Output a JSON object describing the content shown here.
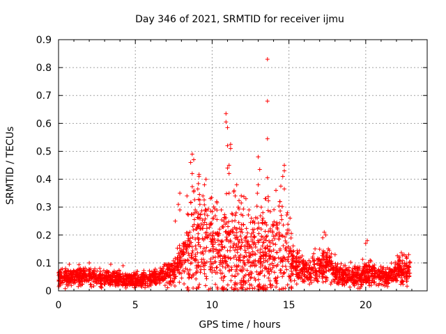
{
  "chart_data": {
    "type": "scatter",
    "title": "Day 346 of 2021, SRMTID for receiver ijmu",
    "xlabel": "GPS time / hours",
    "ylabel": "SRMTID / TECUs",
    "xlim": [
      0,
      24
    ],
    "ylim": [
      0,
      0.9
    ],
    "xticks": [
      0,
      5,
      10,
      15,
      20
    ],
    "yticks": [
      0,
      0.1,
      0.2,
      0.3,
      0.4,
      0.5,
      0.6,
      0.7,
      0.8,
      0.9
    ],
    "grid": true,
    "marker": "plus",
    "series": [
      {
        "name": "SRMTID",
        "color": "#ff0000",
        "profile": {
          "x": [
            0,
            1,
            2,
            3,
            4,
            5,
            6,
            6.5,
            7,
            7.5,
            8,
            8.3,
            8.6,
            8.8,
            9,
            9.5,
            10,
            10.5,
            11,
            11.5,
            12,
            12.5,
            13,
            13.5,
            14,
            14.5,
            15,
            15.5,
            16,
            16.5,
            17,
            17.5,
            18,
            18.5,
            19,
            19.5,
            20,
            20.5,
            21,
            21.5,
            22,
            22.5,
            22.9
          ],
          "y": [
            0.045,
            0.05,
            0.05,
            0.045,
            0.04,
            0.04,
            0.045,
            0.05,
            0.065,
            0.075,
            0.1,
            0.14,
            0.17,
            0.19,
            0.2,
            0.17,
            0.16,
            0.15,
            0.15,
            0.15,
            0.14,
            0.13,
            0.14,
            0.14,
            0.15,
            0.17,
            0.12,
            0.09,
            0.07,
            0.075,
            0.08,
            0.1,
            0.065,
            0.055,
            0.055,
            0.06,
            0.065,
            0.06,
            0.055,
            0.05,
            0.07,
            0.08,
            0.08
          ]
        },
        "outliers": [
          {
            "x": 13.6,
            "y": 0.83
          },
          {
            "x": 13.6,
            "y": 0.68
          },
          {
            "x": 10.9,
            "y": 0.635
          },
          {
            "x": 10.9,
            "y": 0.605
          },
          {
            "x": 11.0,
            "y": 0.585
          },
          {
            "x": 13.6,
            "y": 0.545
          },
          {
            "x": 11.2,
            "y": 0.525
          },
          {
            "x": 11.0,
            "y": 0.52
          },
          {
            "x": 11.2,
            "y": 0.51
          },
          {
            "x": 13.0,
            "y": 0.48
          },
          {
            "x": 8.7,
            "y": 0.49
          },
          {
            "x": 8.8,
            "y": 0.47
          },
          {
            "x": 8.6,
            "y": 0.46
          },
          {
            "x": 11.1,
            "y": 0.45
          },
          {
            "x": 14.7,
            "y": 0.45
          },
          {
            "x": 11.0,
            "y": 0.44
          },
          {
            "x": 13.1,
            "y": 0.435
          },
          {
            "x": 14.7,
            "y": 0.43
          },
          {
            "x": 8.7,
            "y": 0.42
          },
          {
            "x": 11.1,
            "y": 0.42
          },
          {
            "x": 14.6,
            "y": 0.41
          },
          {
            "x": 13.6,
            "y": 0.405
          },
          {
            "x": 9.6,
            "y": 0.4
          },
          {
            "x": 9.5,
            "y": 0.38
          },
          {
            "x": 13.0,
            "y": 0.38
          },
          {
            "x": 11.6,
            "y": 0.38
          },
          {
            "x": 14.7,
            "y": 0.365
          },
          {
            "x": 8.8,
            "y": 0.355
          },
          {
            "x": 11.1,
            "y": 0.35
          },
          {
            "x": 7.9,
            "y": 0.35
          },
          {
            "x": 9.4,
            "y": 0.34
          },
          {
            "x": 11.5,
            "y": 0.34
          },
          {
            "x": 12.2,
            "y": 0.33
          },
          {
            "x": 13.5,
            "y": 0.33
          },
          {
            "x": 7.8,
            "y": 0.31
          },
          {
            "x": 9.2,
            "y": 0.31
          },
          {
            "x": 10.3,
            "y": 0.32
          },
          {
            "x": 13.2,
            "y": 0.3
          },
          {
            "x": 14.4,
            "y": 0.32
          },
          {
            "x": 11.7,
            "y": 0.3
          },
          {
            "x": 7.9,
            "y": 0.29
          },
          {
            "x": 12.4,
            "y": 0.29
          },
          {
            "x": 8.9,
            "y": 0.29
          },
          {
            "x": 10.6,
            "y": 0.29
          },
          {
            "x": 14.9,
            "y": 0.28
          },
          {
            "x": 12.0,
            "y": 0.27
          },
          {
            "x": 9.7,
            "y": 0.27
          },
          {
            "x": 14.5,
            "y": 0.27
          },
          {
            "x": 10.1,
            "y": 0.26
          },
          {
            "x": 13.3,
            "y": 0.26
          },
          {
            "x": 11.3,
            "y": 0.25
          },
          {
            "x": 12.7,
            "y": 0.25
          },
          {
            "x": 7.6,
            "y": 0.25
          },
          {
            "x": 17.3,
            "y": 0.21
          },
          {
            "x": 17.4,
            "y": 0.2
          },
          {
            "x": 20.1,
            "y": 0.18
          },
          {
            "x": 20.0,
            "y": 0.17
          },
          {
            "x": 16.7,
            "y": 0.15
          },
          {
            "x": 17.2,
            "y": 0.19
          },
          {
            "x": 22.5,
            "y": 0.13
          },
          {
            "x": 22.8,
            "y": 0.13
          },
          {
            "x": 2.0,
            "y": 0.1
          },
          {
            "x": 3.4,
            "y": 0.095
          },
          {
            "x": 0.7,
            "y": 0.095
          },
          {
            "x": 4.2,
            "y": 0.09
          },
          {
            "x": 18.0,
            "y": 0.13
          }
        ]
      }
    ]
  }
}
